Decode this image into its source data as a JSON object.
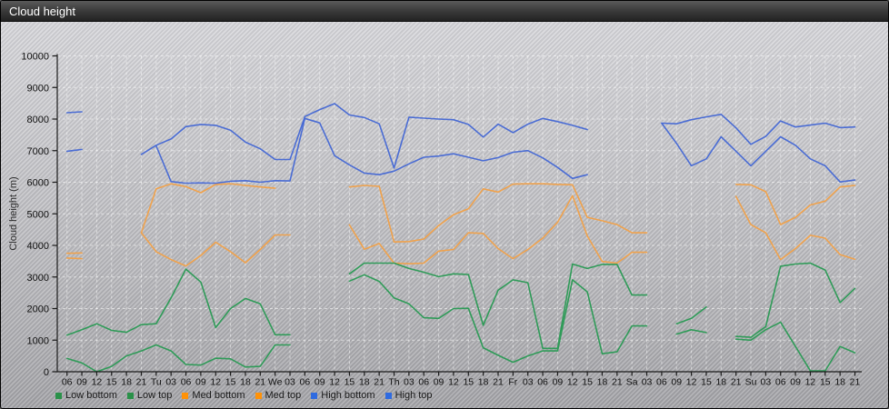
{
  "window": {
    "title": "Cloud height"
  },
  "chart_data": {
    "type": "line",
    "title": "Cloud height",
    "ylabel": "Cloud height (m)",
    "ylim": [
      0,
      10000
    ],
    "ytick_step": 1000,
    "grid": true,
    "grid_style": "white-dashed",
    "legend_position": "bottom",
    "x_labels": [
      "06",
      "09",
      "12",
      "15",
      "18",
      "21",
      "Tu",
      "03",
      "06",
      "09",
      "12",
      "15",
      "18",
      "21",
      "We",
      "03",
      "06",
      "09",
      "12",
      "15",
      "18",
      "21",
      "Th",
      "03",
      "06",
      "09",
      "12",
      "15",
      "18",
      "21",
      "Fr",
      "03",
      "06",
      "09",
      "12",
      "15",
      "18",
      "21",
      "Sa",
      "03",
      "06",
      "09",
      "12",
      "15",
      "18",
      "21",
      "Su",
      "03",
      "06",
      "09",
      "12",
      "15",
      "18",
      "21"
    ],
    "series": [
      {
        "name": "Low bottom",
        "color": "#2f9b58",
        "legend_color": "#2a9149",
        "values": [
          420,
          280,
          0,
          170,
          500,
          660,
          850,
          660,
          230,
          210,
          430,
          410,
          150,
          170,
          850,
          850,
          null,
          null,
          null,
          2870,
          3070,
          2860,
          2340,
          2150,
          1710,
          1690,
          2000,
          2010,
          760,
          520,
          300,
          500,
          660,
          660,
          2910,
          2530,
          570,
          630,
          1450,
          1450,
          null,
          1190,
          1330,
          1240,
          null,
          1030,
          1000,
          1330,
          1570,
          800,
          30,
          30,
          800,
          600
        ]
      },
      {
        "name": "Low top",
        "color": "#2f9b58",
        "legend_color": "#2a9149",
        "values": [
          1160,
          1330,
          1520,
          1310,
          1250,
          1490,
          1520,
          2340,
          3250,
          2840,
          1400,
          2000,
          2320,
          2150,
          1170,
          1170,
          null,
          null,
          null,
          3100,
          3440,
          3440,
          3440,
          3270,
          3150,
          3010,
          3100,
          3080,
          1470,
          2580,
          2910,
          2820,
          740,
          740,
          3410,
          3270,
          3400,
          3400,
          2430,
          2430,
          null,
          1520,
          1690,
          2050,
          null,
          1120,
          1090,
          1430,
          3340,
          3410,
          3440,
          3220,
          2190,
          2640
        ]
      },
      {
        "name": "Med bottom",
        "color": "#f0a24c",
        "legend_color": "#ff9208",
        "values": [
          3600,
          3580,
          null,
          null,
          null,
          4400,
          3800,
          3550,
          3350,
          3680,
          4100,
          3800,
          3450,
          3870,
          4330,
          4330,
          null,
          null,
          null,
          4650,
          3880,
          4060,
          3440,
          3420,
          3440,
          3820,
          3870,
          4400,
          4380,
          3900,
          3580,
          3870,
          4230,
          4730,
          5570,
          4300,
          3490,
          3440,
          3780,
          3780,
          null,
          null,
          null,
          null,
          null,
          5550,
          4660,
          4400,
          3550,
          3900,
          4320,
          4230,
          3710,
          3560
        ]
      },
      {
        "name": "Med top",
        "color": "#f0a24c",
        "legend_color": "#ff9208",
        "values": [
          3750,
          3760,
          null,
          null,
          null,
          4400,
          5790,
          5950,
          5860,
          5670,
          5930,
          5950,
          5900,
          5850,
          5810,
          null,
          null,
          null,
          null,
          5850,
          5900,
          5870,
          4110,
          4120,
          4200,
          4630,
          4970,
          5160,
          5790,
          5690,
          5940,
          5950,
          5950,
          5930,
          5920,
          4890,
          4780,
          4660,
          4400,
          4400,
          null,
          null,
          null,
          null,
          null,
          5930,
          5920,
          5700,
          4660,
          4890,
          5280,
          5400,
          5850,
          5900
        ]
      },
      {
        "name": "High bottom",
        "color": "#4a6cd4",
        "legend_color": "#2f6be0",
        "values": [
          6980,
          7040,
          null,
          null,
          null,
          null,
          7150,
          6020,
          5970,
          5980,
          5970,
          6030,
          6050,
          6000,
          6050,
          6040,
          8020,
          7880,
          6840,
          6550,
          6290,
          6240,
          6350,
          6580,
          6790,
          6830,
          6900,
          6790,
          6680,
          6780,
          6950,
          7000,
          6770,
          6470,
          6120,
          6240,
          null,
          null,
          null,
          null,
          7870,
          7230,
          6520,
          6740,
          7440,
          6980,
          6520,
          6980,
          7440,
          7170,
          6740,
          6520,
          6010,
          6070
        ]
      },
      {
        "name": "High top",
        "color": "#4a6cd4",
        "legend_color": "#2f6be0",
        "values": [
          8200,
          8230,
          null,
          null,
          null,
          6880,
          7170,
          7370,
          7760,
          7830,
          7800,
          7650,
          7270,
          7060,
          6720,
          6720,
          8080,
          8300,
          8490,
          8130,
          8050,
          7850,
          6450,
          8060,
          8030,
          8000,
          7980,
          7830,
          7430,
          7840,
          7570,
          7840,
          8020,
          7920,
          7800,
          7670,
          null,
          null,
          null,
          null,
          7870,
          7850,
          7980,
          8070,
          8150,
          7720,
          7200,
          7450,
          7940,
          7750,
          7810,
          7870,
          7730,
          7750
        ]
      }
    ]
  },
  "colors": {
    "axis": "#1a1a1a",
    "grid": "rgba(255,255,255,0.55)",
    "tick_label": "#111111",
    "titlebar_text": "#ffffff"
  }
}
